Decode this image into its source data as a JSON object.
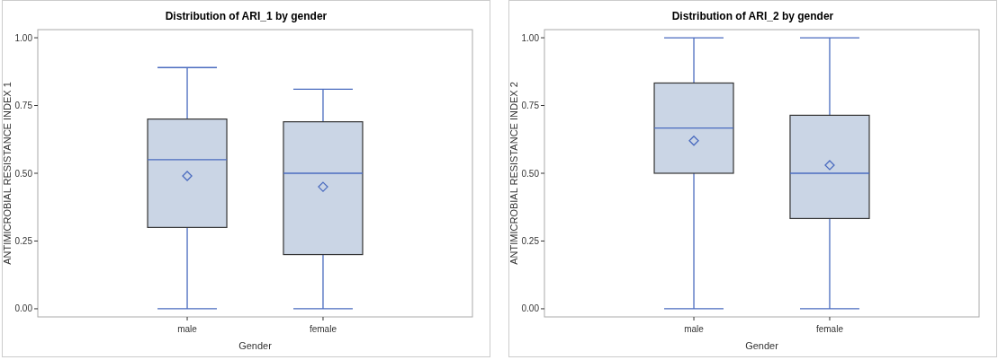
{
  "chart_data": [
    {
      "type": "box",
      "title": "Distribution of ARI_1 by gender",
      "xlabel": "Gender",
      "ylabel": "ANTIMICROBIAL RESISTANCE INDEX 1",
      "categories": [
        "male",
        "female"
      ],
      "ylim": [
        -0.03,
        1.03
      ],
      "yticks": [
        {
          "value": 0,
          "label": "0.00"
        },
        {
          "value": 0.25,
          "label": "0.25"
        },
        {
          "value": 0.5,
          "label": "0.50"
        },
        {
          "value": 0.75,
          "label": "0.75"
        },
        {
          "value": 1,
          "label": "1.00"
        }
      ],
      "grid": false,
      "series": [
        {
          "color": "#cad5e5",
          "boxes": [
            {
              "low": 0,
              "q1": 0.3,
              "median": 0.55,
              "q3": 0.7,
              "high": 0.89,
              "mean": 0.49
            },
            {
              "low": 0,
              "q1": 0.2,
              "median": 0.5,
              "q3": 0.69,
              "high": 0.81,
              "mean": 0.45
            }
          ]
        }
      ]
    },
    {
      "type": "box",
      "title": "Distribution of ARI_2 by gender",
      "xlabel": "Gender",
      "ylabel": "ANTIMICROBIAL RESISTANCE INDEX 2",
      "categories": [
        "male",
        "female"
      ],
      "ylim": [
        -0.03,
        1.03
      ],
      "yticks": [
        {
          "value": 0,
          "label": "0.00"
        },
        {
          "value": 0.25,
          "label": "0.25"
        },
        {
          "value": 0.5,
          "label": "0.50"
        },
        {
          "value": 0.75,
          "label": "0.75"
        },
        {
          "value": 1,
          "label": "1.00"
        }
      ],
      "grid": false,
      "series": [
        {
          "color": "#cad5e5",
          "boxes": [
            {
              "low": 0,
              "q1": 0.5,
              "median": 0.667,
              "q3": 0.833,
              "high": 1,
              "mean": 0.62
            },
            {
              "low": 0,
              "q1": 0.333,
              "median": 0.5,
              "q3": 0.714,
              "high": 1,
              "mean": 0.53
            }
          ]
        }
      ]
    }
  ]
}
